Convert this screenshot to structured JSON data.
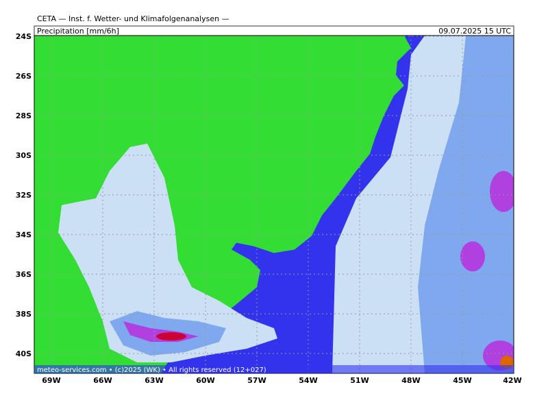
{
  "header": {
    "title": "CETA — Inst. f. Wetter- und Klimafolgenanalysen —",
    "field": "Precipitation [mm/6h]",
    "datetime": "09.07.2025 15 UTC"
  },
  "footer": "meteo-services.com • (c)2025 (WK) • All rights reserved (12+027)",
  "axes": {
    "lon_labels": [
      "69W",
      "66W",
      "63W",
      "60W",
      "57W",
      "54W",
      "51W",
      "48W",
      "45W",
      "42W"
    ],
    "lat_labels": [
      "24S",
      "26S",
      "28S",
      "30S",
      "32S",
      "34S",
      "36S",
      "38S",
      "40S"
    ]
  }
}
